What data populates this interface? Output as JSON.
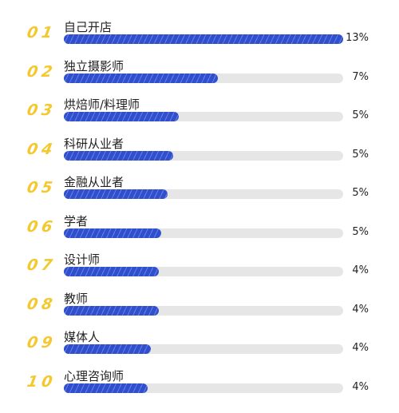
{
  "chart_data": {
    "type": "bar",
    "orientation": "horizontal",
    "ranks": [
      "01",
      "02",
      "03",
      "04",
      "05",
      "06",
      "07",
      "08",
      "09",
      "10"
    ],
    "categories": [
      "自己开店",
      "独立摄影师",
      "烘焙师/料理师",
      "科研从业者",
      "金融从业者",
      "学者",
      "设计师",
      "教师",
      "媒体人",
      "心理咨询师"
    ],
    "values": [
      13,
      7,
      5,
      5,
      5,
      5,
      4,
      4,
      4,
      4
    ],
    "bar_fill": [
      1.0,
      0.55,
      0.41,
      0.39,
      0.37,
      0.35,
      0.34,
      0.34,
      0.31,
      0.3
    ],
    "value_labels": [
      "13%",
      "7%",
      "5%",
      "5%",
      "5%",
      "5%",
      "4%",
      "4%",
      "4%",
      "4%"
    ],
    "colors": {
      "bar": "#2f4fcf",
      "track": "#e6e6e6",
      "rank": "#f3c92f"
    }
  }
}
